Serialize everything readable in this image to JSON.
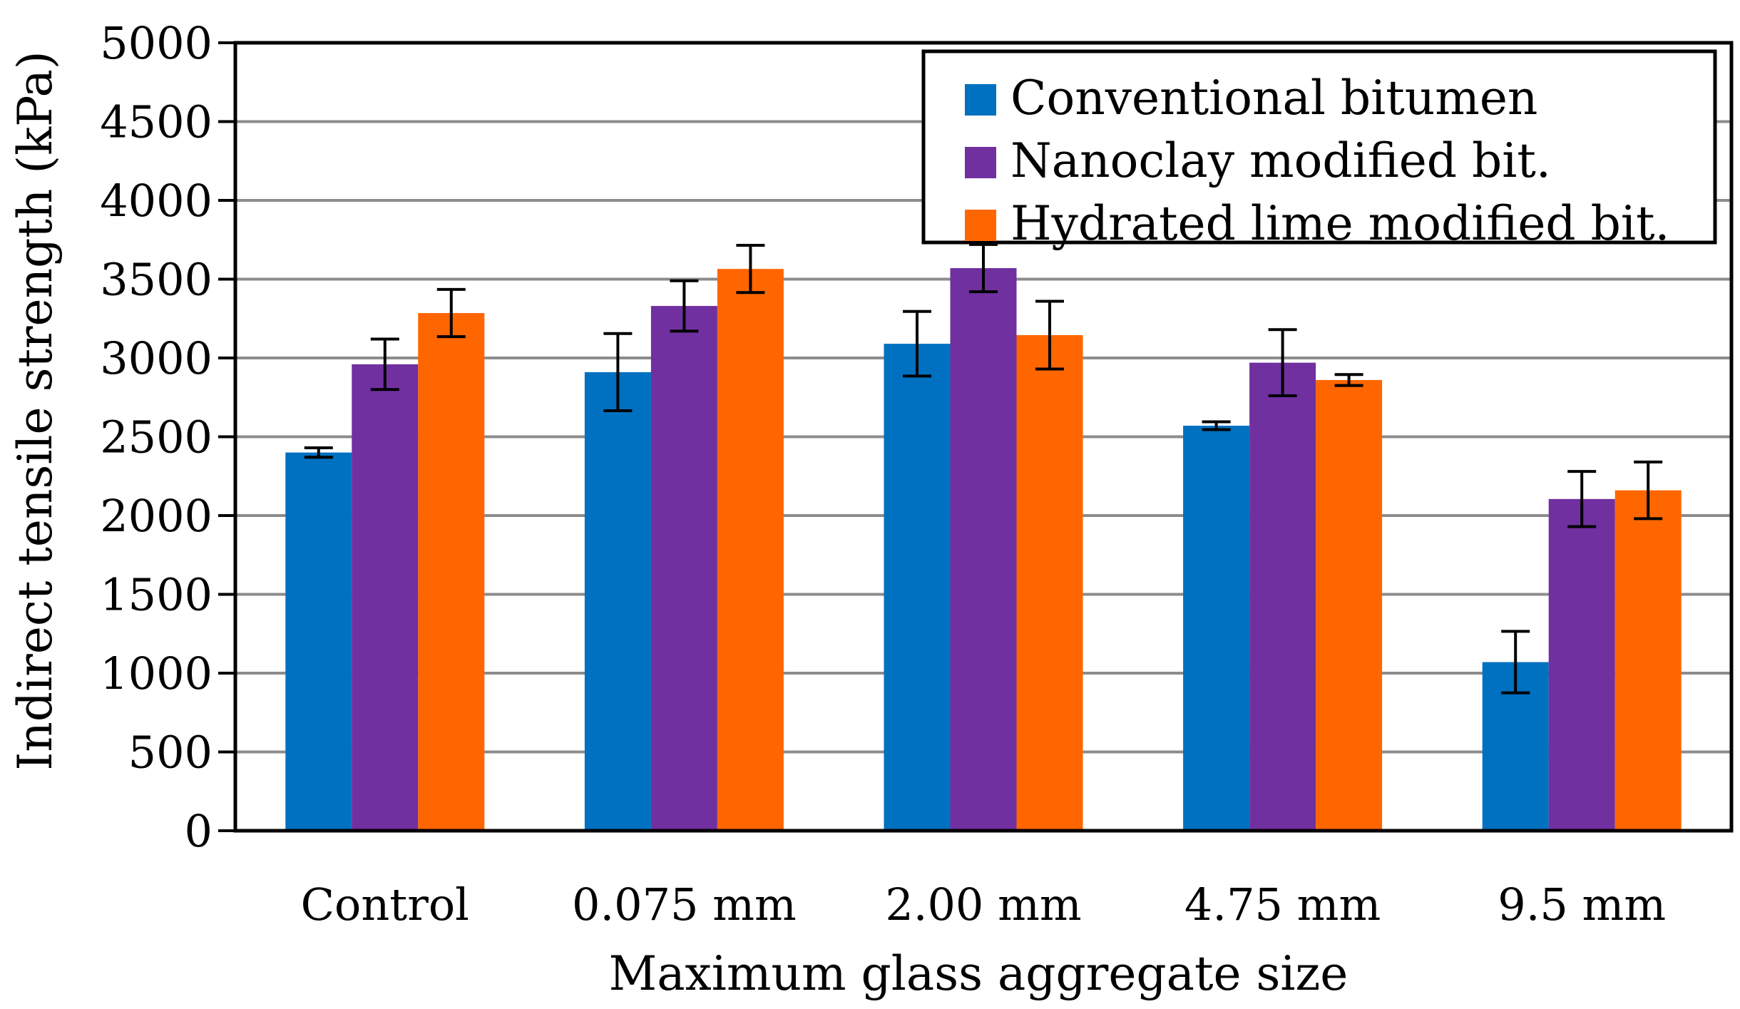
{
  "chart_data": {
    "type": "bar",
    "title": "",
    "xlabel": "Maximum glass aggregate size",
    "ylabel": "Indirect tensile strength (kPa)",
    "ylim": [
      0,
      5000
    ],
    "yticks": [
      "0",
      "500",
      "1000",
      "1500",
      "2000",
      "2500",
      "3000",
      "3500",
      "4000",
      "4500",
      "5000"
    ],
    "grid": true,
    "legend_position": "top-right",
    "categories": [
      "Control",
      "0.075 mm",
      "2.00 mm",
      "4.75 mm",
      "9.5 mm"
    ],
    "series": [
      {
        "name": "Conventional bitumen",
        "color": "#0070C0",
        "values": [
          2400,
          2910,
          3090,
          2570,
          1070
        ],
        "errors": [
          30,
          245,
          205,
          25,
          195
        ]
      },
      {
        "name": "Nanoclay modified bit.",
        "color": "#7030A0",
        "values": [
          2960,
          3330,
          3570,
          2970,
          2105
        ],
        "errors": [
          160,
          160,
          150,
          210,
          175
        ]
      },
      {
        "name": "Hydrated lime modified bit.",
        "color": "#FF6600",
        "values": [
          3285,
          3565,
          3145,
          2860,
          2160
        ],
        "errors": [
          150,
          150,
          215,
          35,
          180
        ]
      }
    ]
  }
}
